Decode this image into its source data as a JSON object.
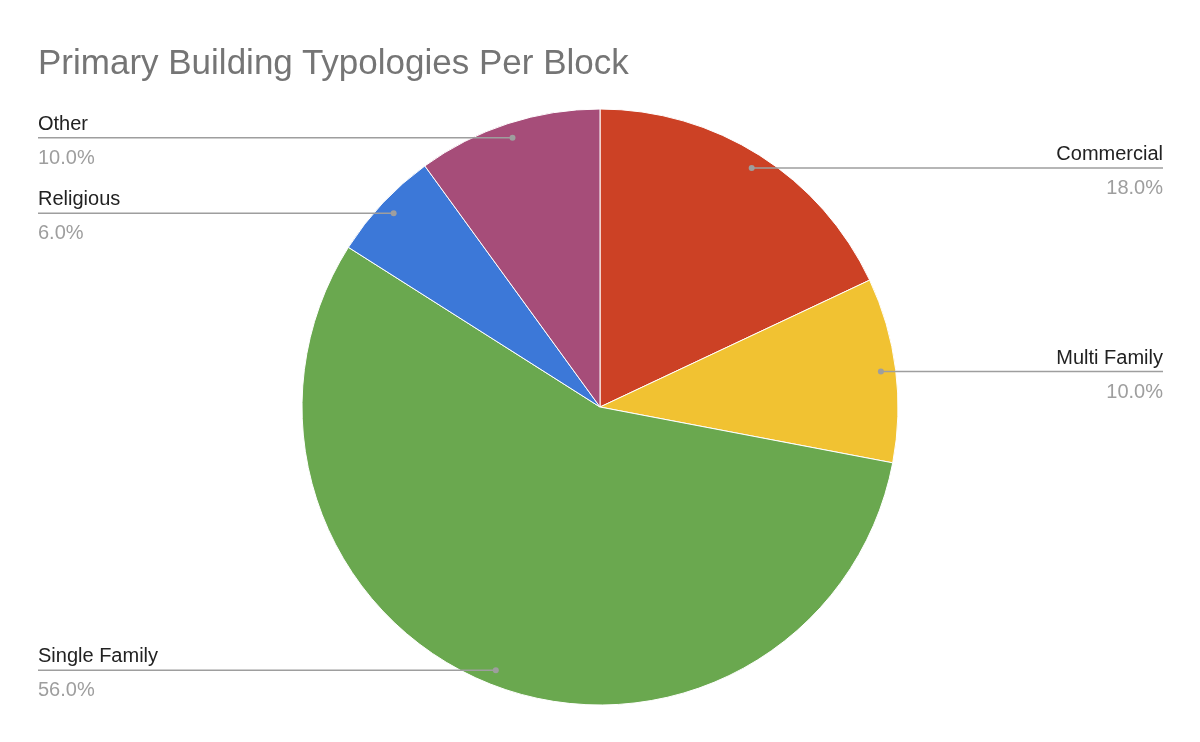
{
  "chart_data": {
    "type": "pie",
    "title": "Primary Building Typologies Per Block",
    "categories": [
      "Commercial",
      "Multi Family",
      "Single Family",
      "Religious",
      "Other"
    ],
    "values": [
      18,
      10,
      56,
      6,
      10
    ],
    "colors": [
      "#cc4125",
      "#f1c232",
      "#6aa84f",
      "#3c78d8",
      "#a64d79"
    ],
    "value_labels": [
      "18.0%",
      "10.0%",
      "56.0%",
      "6.0%",
      "10.0%"
    ],
    "legend": false
  }
}
